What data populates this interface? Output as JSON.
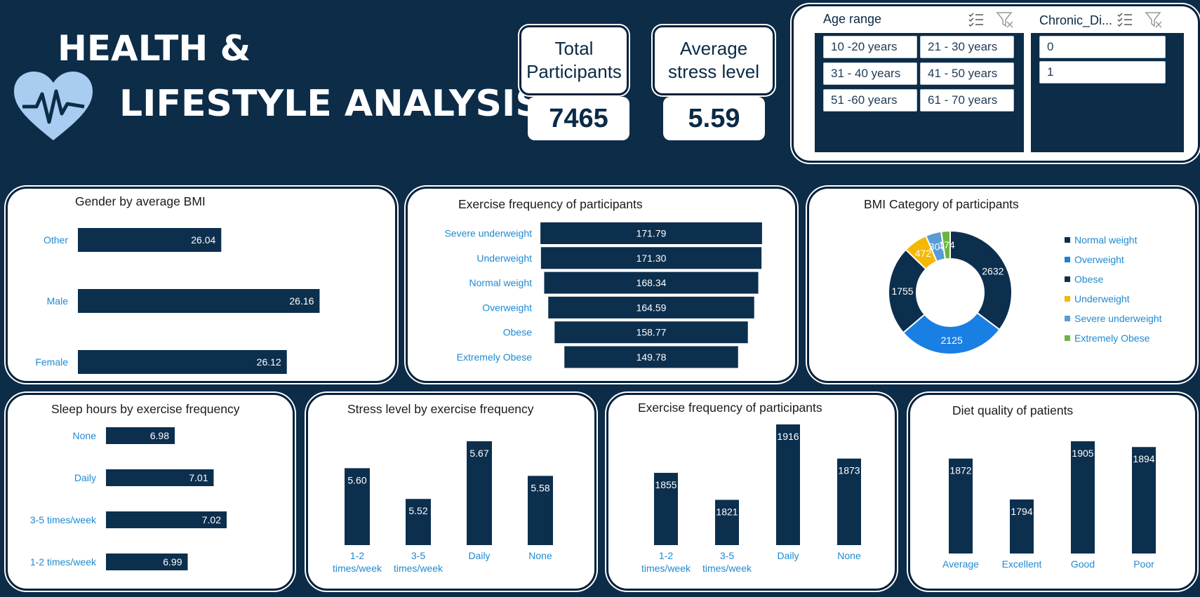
{
  "header": {
    "title_line1": "HEALTH &",
    "title_line2": "LIFESTYLE ANALYSIS"
  },
  "kpis": {
    "total_label": "Total Participants",
    "total_value": "7465",
    "stress_label": "Average stress level",
    "stress_value": "5.59"
  },
  "slicers": {
    "age": {
      "title": "Age range",
      "items": [
        "10 -20 years",
        "21 - 30 years",
        "31 - 40 years",
        "41 - 50 years",
        "51 -60 years",
        "61 - 70 years"
      ]
    },
    "chronic": {
      "title": "Chronic_Di...",
      "items": [
        "0",
        "1"
      ]
    }
  },
  "colors": {
    "bar": "#0c2f4e",
    "category_text": "#1f8ad1",
    "background": "#0c2c48"
  },
  "chart_data": [
    {
      "id": "gender_bmi",
      "type": "bar",
      "orientation": "horizontal",
      "title": "Gender by average BMI",
      "categories": [
        "Other",
        "Male",
        "Female"
      ],
      "values": [
        26.04,
        26.16,
        26.12
      ],
      "labels": [
        "26.04",
        "26.16",
        "26.12"
      ]
    },
    {
      "id": "exercise_funnel",
      "type": "bar",
      "orientation": "horizontal-centered",
      "title": "Exercise frequency of participants",
      "categories": [
        "Severe underweight",
        "Underweight",
        "Normal weight",
        "Overweight",
        "Obese",
        "Extremely Obese"
      ],
      "values": [
        171.79,
        171.3,
        168.34,
        164.59,
        158.77,
        149.78
      ],
      "labels": [
        "171.79",
        "171.30",
        "168.34",
        "164.59",
        "158.77",
        "149.78"
      ]
    },
    {
      "id": "bmi_category",
      "type": "pie",
      "donut": true,
      "title": "BMI Category of participants",
      "categories": [
        "Normal weight",
        "Overweight",
        "Obese",
        "Underweight",
        "Severe underweight",
        "Extremely Obese"
      ],
      "values": [
        2632,
        2125,
        1755,
        472,
        307,
        174
      ],
      "labels": [
        "2632",
        "2125",
        "1755",
        "472",
        "307",
        "174"
      ],
      "colors": [
        "#0c2f4e",
        "#1a7fe3",
        "#0c2f4e",
        "#f5b800",
        "#5b9bd5",
        "#6cb43f"
      ],
      "legend": "right"
    },
    {
      "id": "sleep_hours",
      "type": "bar",
      "orientation": "horizontal",
      "title": "Sleep hours by exercise frequency",
      "categories": [
        "None",
        "Daily",
        "3-5 times/week",
        "1-2 times/week"
      ],
      "values": [
        6.98,
        7.01,
        7.02,
        6.99
      ],
      "labels": [
        "6.98",
        "7.01",
        "7.02",
        "6.99"
      ]
    },
    {
      "id": "stress_level",
      "type": "bar",
      "title": "Stress level by exercise frequency",
      "categories": [
        "1-2 times/week",
        "3-5 times/week",
        "Daily",
        "None"
      ],
      "values": [
        5.6,
        5.52,
        5.67,
        5.58
      ],
      "labels": [
        "5.60",
        "5.52",
        "5.67",
        "5.58"
      ]
    },
    {
      "id": "exercise_count",
      "type": "bar",
      "title": "Exercise frequency of participants",
      "categories": [
        "1-2 times/week",
        "3-5 times/week",
        "Daily",
        "None"
      ],
      "values": [
        1855,
        1821,
        1916,
        1873
      ],
      "labels": [
        "1855",
        "1821",
        "1916",
        "1873"
      ]
    },
    {
      "id": "diet_quality",
      "type": "bar",
      "title": "Diet quality of patients",
      "categories": [
        "Average",
        "Excellent",
        "Good",
        "Poor"
      ],
      "values": [
        1872,
        1794,
        1905,
        1894
      ],
      "labels": [
        "1872",
        "1794",
        "1905",
        "1894"
      ]
    }
  ]
}
